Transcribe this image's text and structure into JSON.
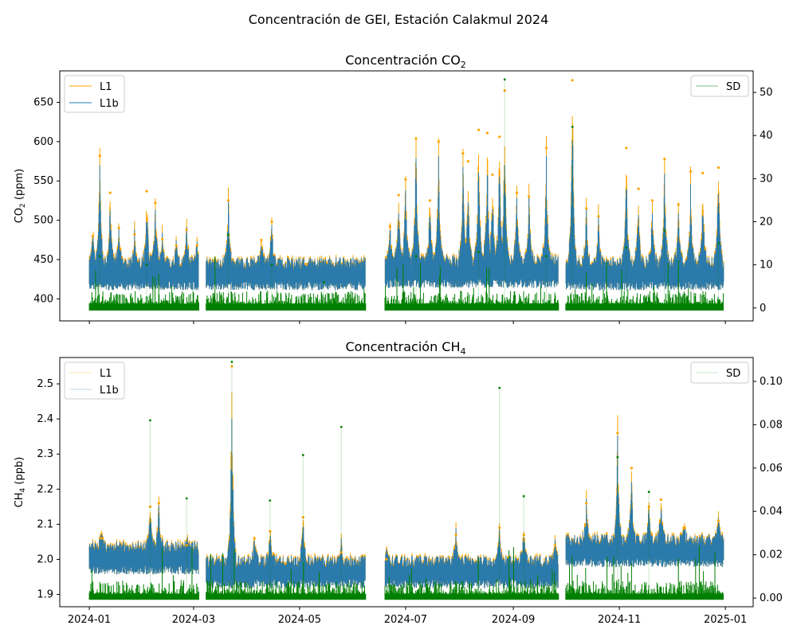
{
  "figure": {
    "suptitle": "Concentración de GEI, Estación Calakmul  2024"
  },
  "chart_data": [
    {
      "type": "line",
      "title_main": "Concentración CO",
      "title_sub": "2",
      "ylabel_main": "CO",
      "ylabel_sub": "2",
      "ylabel_rest": " (ppm)",
      "ylim": [
        372,
        690
      ],
      "y2lim": [
        -3,
        55
      ],
      "yticks": [
        400,
        450,
        500,
        550,
        600,
        650
      ],
      "y2ticks": [
        0,
        10,
        20,
        30,
        40,
        50
      ],
      "legend_left": [
        "L1",
        "L1b"
      ],
      "legend_right": [
        "SD"
      ],
      "colors": {
        "L1": "#ffa500",
        "L1b": "#1f77b4",
        "SD": "#008000"
      },
      "gaps": [
        [
          "2024-03-04",
          "2024-03-08"
        ],
        [
          "2024-06-08",
          "2024-06-19"
        ],
        [
          "2024-09-27",
          "2024-10-01"
        ]
      ],
      "baseline_segments": [
        {
          "start": "2024-01-01",
          "end": "2024-03-04",
          "value": 430
        },
        {
          "start": "2024-03-08",
          "end": "2024-06-08",
          "value": 430
        },
        {
          "start": "2024-06-19",
          "end": "2024-09-27",
          "value": 433
        },
        {
          "start": "2024-10-01",
          "end": "2024-12-31",
          "value": 430
        }
      ],
      "sd_baseline": 1,
      "peaks": [
        {
          "x": "2024-01-03",
          "y": 480
        },
        {
          "x": "2024-01-07",
          "y": 582
        },
        {
          "x": "2024-01-13",
          "y": 535
        },
        {
          "x": "2024-01-18",
          "y": 490
        },
        {
          "x": "2024-01-27",
          "y": 482
        },
        {
          "x": "2024-02-03",
          "y": 537
        },
        {
          "x": "2024-02-08",
          "y": 522
        },
        {
          "x": "2024-02-12",
          "y": 476
        },
        {
          "x": "2024-02-20",
          "y": 468
        },
        {
          "x": "2024-02-26",
          "y": 488
        },
        {
          "x": "2024-03-03",
          "y": 468
        },
        {
          "x": "2024-03-21",
          "y": 525
        },
        {
          "x": "2024-04-09",
          "y": 475
        },
        {
          "x": "2024-04-15",
          "y": 498
        },
        {
          "x": "2024-06-22",
          "y": 492
        },
        {
          "x": "2024-06-27",
          "y": 532
        },
        {
          "x": "2024-07-01",
          "y": 552
        },
        {
          "x": "2024-07-07",
          "y": 604
        },
        {
          "x": "2024-07-15",
          "y": 525
        },
        {
          "x": "2024-07-20",
          "y": 600
        },
        {
          "x": "2024-08-03",
          "y": 585
        },
        {
          "x": "2024-08-06",
          "y": 575
        },
        {
          "x": "2024-08-12",
          "y": 615
        },
        {
          "x": "2024-08-17",
          "y": 611
        },
        {
          "x": "2024-08-20",
          "y": 558
        },
        {
          "x": "2024-08-24",
          "y": 606
        },
        {
          "x": "2024-08-27",
          "y": 665
        },
        {
          "x": "2024-09-03",
          "y": 535
        },
        {
          "x": "2024-09-10",
          "y": 530
        },
        {
          "x": "2024-09-20",
          "y": 592
        },
        {
          "x": "2024-10-05",
          "y": 678
        },
        {
          "x": "2024-10-13",
          "y": 515
        },
        {
          "x": "2024-10-20",
          "y": 505
        },
        {
          "x": "2024-11-05",
          "y": 592
        },
        {
          "x": "2024-11-12",
          "y": 540
        },
        {
          "x": "2024-11-20",
          "y": 525
        },
        {
          "x": "2024-11-27",
          "y": 578
        },
        {
          "x": "2024-12-05",
          "y": 520
        },
        {
          "x": "2024-12-12",
          "y": 562
        },
        {
          "x": "2024-12-19",
          "y": 560
        },
        {
          "x": "2024-12-28",
          "y": 567
        }
      ],
      "sd_peaks": [
        {
          "x": "2024-01-07",
          "y": 12
        },
        {
          "x": "2024-02-03",
          "y": 10
        },
        {
          "x": "2024-03-21",
          "y": 17
        },
        {
          "x": "2024-04-15",
          "y": 10
        },
        {
          "x": "2024-05-15",
          "y": 6
        },
        {
          "x": "2024-07-07",
          "y": 12
        },
        {
          "x": "2024-08-12",
          "y": 13
        },
        {
          "x": "2024-08-27",
          "y": 53
        },
        {
          "x": "2024-09-20",
          "y": 12
        },
        {
          "x": "2024-10-05",
          "y": 42
        },
        {
          "x": "2024-11-05",
          "y": 14
        },
        {
          "x": "2024-11-27",
          "y": 18
        },
        {
          "x": "2024-12-28",
          "y": 15
        }
      ]
    },
    {
      "type": "line",
      "title_main": "Concentración CH",
      "title_sub": "4",
      "ylabel_main": "CH",
      "ylabel_sub": "4",
      "ylabel_rest": " (ppb)",
      "ylim": [
        1.865,
        2.575
      ],
      "y2lim": [
        -0.004,
        0.111
      ],
      "yticks": [
        1.9,
        2.0,
        2.1,
        2.2,
        2.3,
        2.4,
        2.5
      ],
      "y2ticks": [
        0.0,
        0.02,
        0.04,
        0.06,
        0.08,
        0.1
      ],
      "legend_left": [
        "L1",
        "L1b"
      ],
      "legend_right": [
        "SD"
      ],
      "colors": {
        "L1": "#ffa500",
        "L1b": "#1f77b4",
        "SD": "#008000"
      },
      "gaps": [
        [
          "2024-03-04",
          "2024-03-08"
        ],
        [
          "2024-06-08",
          "2024-06-19"
        ],
        [
          "2024-09-27",
          "2024-10-01"
        ]
      ],
      "baseline_segments": [
        {
          "start": "2024-01-01",
          "end": "2024-03-04",
          "value": 2.0
        },
        {
          "start": "2024-03-08",
          "end": "2024-06-08",
          "value": 1.96
        },
        {
          "start": "2024-06-19",
          "end": "2024-09-27",
          "value": 1.96
        },
        {
          "start": "2024-10-01",
          "end": "2024-12-31",
          "value": 2.02
        }
      ],
      "sd_baseline": 0.002,
      "peaks": [
        {
          "x": "2024-01-08",
          "y": 2.06
        },
        {
          "x": "2024-02-05",
          "y": 2.15
        },
        {
          "x": "2024-02-10",
          "y": 2.16
        },
        {
          "x": "2024-02-26",
          "y": 2.04
        },
        {
          "x": "2024-03-23",
          "y": 2.55
        },
        {
          "x": "2024-04-05",
          "y": 2.06
        },
        {
          "x": "2024-04-14",
          "y": 2.08
        },
        {
          "x": "2024-05-03",
          "y": 2.12
        },
        {
          "x": "2024-05-25",
          "y": 2.02
        },
        {
          "x": "2024-06-20",
          "y": 2.0
        },
        {
          "x": "2024-07-30",
          "y": 2.07
        },
        {
          "x": "2024-08-24",
          "y": 2.09
        },
        {
          "x": "2024-09-07",
          "y": 2.07
        },
        {
          "x": "2024-09-25",
          "y": 2.04
        },
        {
          "x": "2024-10-13",
          "y": 2.16
        },
        {
          "x": "2024-10-31",
          "y": 2.36
        },
        {
          "x": "2024-11-08",
          "y": 2.26
        },
        {
          "x": "2024-11-18",
          "y": 2.15
        },
        {
          "x": "2024-11-25",
          "y": 2.17
        },
        {
          "x": "2024-12-08",
          "y": 2.09
        },
        {
          "x": "2024-12-28",
          "y": 2.11
        }
      ],
      "sd_peaks": [
        {
          "x": "2024-02-05",
          "y": 0.082
        },
        {
          "x": "2024-02-26",
          "y": 0.046
        },
        {
          "x": "2024-03-23",
          "y": 0.109
        },
        {
          "x": "2024-04-14",
          "y": 0.045
        },
        {
          "x": "2024-05-03",
          "y": 0.066
        },
        {
          "x": "2024-05-25",
          "y": 0.079
        },
        {
          "x": "2024-08-24",
          "y": 0.097
        },
        {
          "x": "2024-09-07",
          "y": 0.047
        },
        {
          "x": "2024-10-31",
          "y": 0.065
        },
        {
          "x": "2024-11-18",
          "y": 0.049
        }
      ]
    }
  ],
  "xaxis": {
    "start": "2023-12-15",
    "end": "2025-01-17",
    "ticks": [
      "2024-01",
      "2024-03",
      "2024-05",
      "2024-07",
      "2024-09",
      "2024-11",
      "2025-01"
    ]
  }
}
